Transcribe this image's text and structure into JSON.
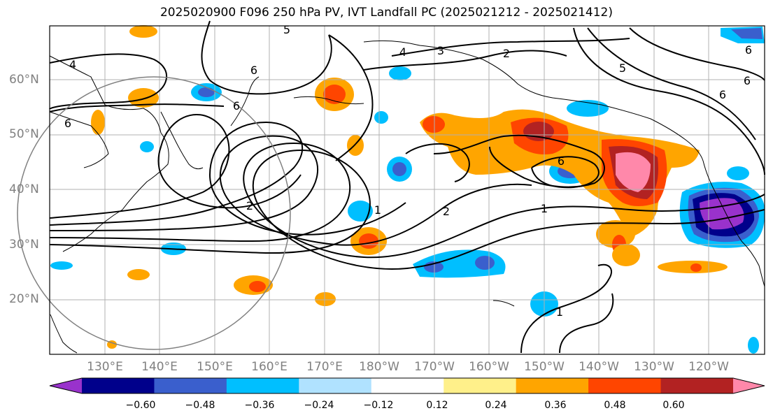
{
  "title": "2025020900 F096 250 hPa PV, IVT Landfall PC (2025021212 - 2025021412)",
  "lat_labels": [
    "60°N",
    "50°N",
    "40°N",
    "30°N",
    "20°N"
  ],
  "lon_labels": [
    "130°E",
    "140°E",
    "150°E",
    "160°E",
    "170°E",
    "180°W",
    "170°W",
    "160°W",
    "150°W",
    "140°W",
    "130°W",
    "120°W"
  ],
  "contour_labels": [
    "5",
    "4",
    "3",
    "2",
    "6",
    "4",
    "6",
    "5",
    "6",
    "6",
    "6",
    "2",
    "6",
    "1",
    "2",
    "1",
    "1",
    "6"
  ],
  "colorbar": {
    "tick_labels": [
      "−0.60",
      "−0.48",
      "−0.36",
      "−0.24",
      "−0.12",
      "0.12",
      "0.24",
      "0.36",
      "0.48",
      "0.60"
    ],
    "colors": [
      "#9932cc",
      "#00008b",
      "#3a5fcd",
      "#00bfff",
      "#b0e2ff",
      "#ffffff",
      "#fff08a",
      "#ffa500",
      "#ff4500",
      "#b22222",
      "#ff88aa"
    ]
  }
}
